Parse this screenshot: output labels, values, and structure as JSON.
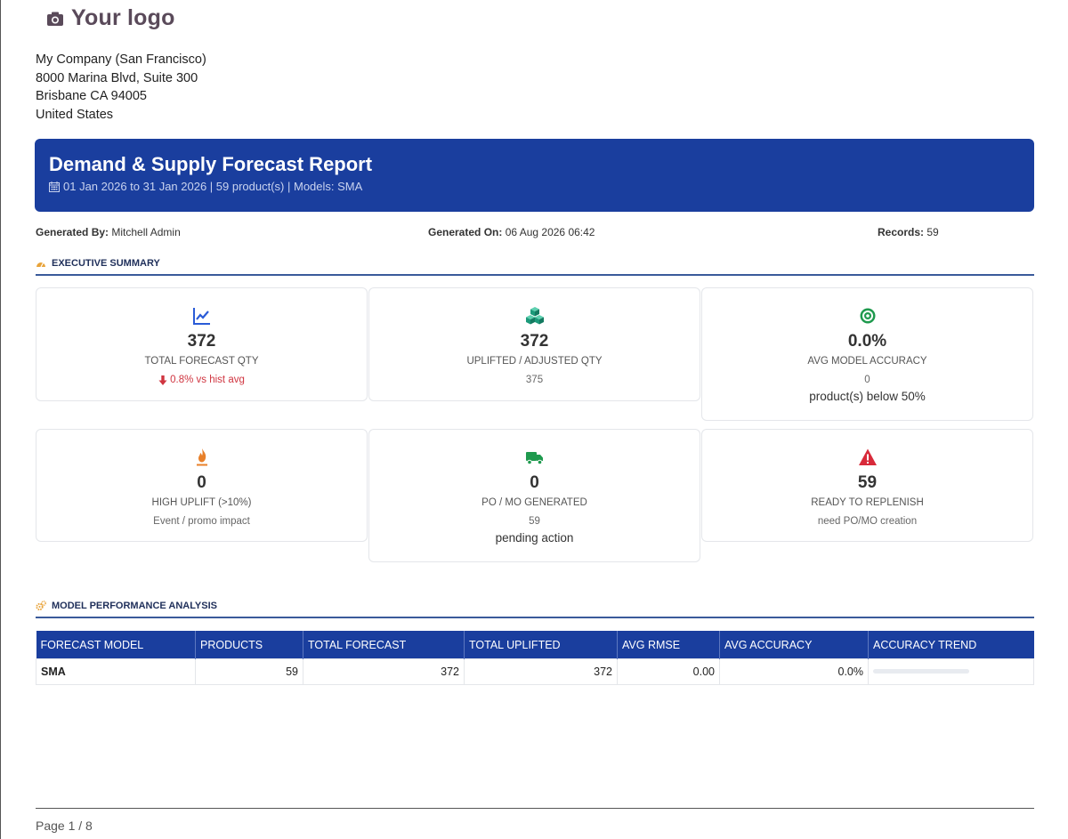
{
  "logo": {
    "text": "Your logo",
    "icon": "camera-icon"
  },
  "company": {
    "name": "My Company (San Francisco)",
    "street": "8000 Marina Blvd, Suite 300",
    "city": "Brisbane CA 94005",
    "country": "United States"
  },
  "report": {
    "title": "Demand & Supply Forecast Report",
    "subtitle": "01 Jan 2026 to 31 Jan 2026  |  59 product(s)  |  Models: SMA"
  },
  "meta": {
    "generated_by_label": "Generated By:",
    "generated_by": "Mitchell Admin",
    "generated_on_label": "Generated On:",
    "generated_on": "06 Aug 2026 06:42",
    "records_label": "Records:",
    "records": "59"
  },
  "executive_summary": {
    "heading": "EXECUTIVE SUMMARY",
    "cards": [
      {
        "icon": "line-chart-icon",
        "value": "372",
        "label": "TOTAL FORECAST QTY",
        "sub": "0.8% vs hist avg"
      },
      {
        "icon": "cubes-icon",
        "value": "372",
        "label": "UPLIFTED / ADJUSTED QTY",
        "sub": "375"
      },
      {
        "icon": "target-icon",
        "value": "0.0%",
        "label": "AVG MODEL ACCURACY",
        "sub": "0",
        "sub2": "product(s) below 50%"
      },
      {
        "icon": "fire-icon",
        "value": "0",
        "label": "HIGH UPLIFT (>10%)",
        "sub": "Event / promo impact"
      },
      {
        "icon": "truck-icon",
        "value": "0",
        "label": "PO / MO GENERATED",
        "sub": "59",
        "sub2": "pending action"
      },
      {
        "icon": "warning-icon",
        "value": "59",
        "label": "READY TO REPLENISH",
        "sub": "need PO/MO creation"
      }
    ]
  },
  "model_performance": {
    "heading": "MODEL PERFORMANCE ANALYSIS",
    "columns": [
      "FORECAST MODEL",
      "PRODUCTS",
      "TOTAL FORECAST",
      "TOTAL UPLIFTED",
      "AVG RMSE",
      "AVG ACCURACY",
      "ACCURACY TREND"
    ],
    "rows": [
      {
        "model": "SMA",
        "products": "59",
        "total_forecast": "372",
        "total_uplifted": "372",
        "avg_rmse": "0.00",
        "avg_accuracy": "0.0%",
        "accuracy_trend": 0.0
      }
    ]
  },
  "colors": {
    "primary": "#1a3e9e",
    "negative": "#d03540"
  },
  "footer": {
    "page": "Page 1 / 8"
  }
}
